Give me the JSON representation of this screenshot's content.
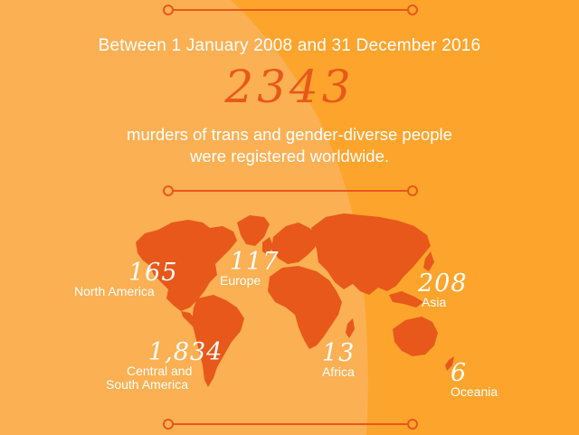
{
  "colors": {
    "background_light": "#fbb053",
    "background_dark": "#fda42c",
    "accent": "#e8581a",
    "text": "#ffffff"
  },
  "headline": "Between 1 January 2008 and 31 December 2016",
  "total": "2343",
  "description": {
    "line1": "murders of trans and gender-diverse people",
    "line2": "were registered worldwide."
  },
  "regions": [
    {
      "count": "165",
      "label_lines": [
        "North America"
      ]
    },
    {
      "count": "117",
      "label_lines": [
        "Europe"
      ]
    },
    {
      "count": "208",
      "label_lines": [
        "Asia"
      ]
    },
    {
      "count": "1,834",
      "label_lines": [
        "Central and",
        "South America"
      ]
    },
    {
      "count": "13",
      "label_lines": [
        "Africa"
      ]
    },
    {
      "count": "6",
      "label_lines": [
        "Oceania"
      ]
    }
  ]
}
